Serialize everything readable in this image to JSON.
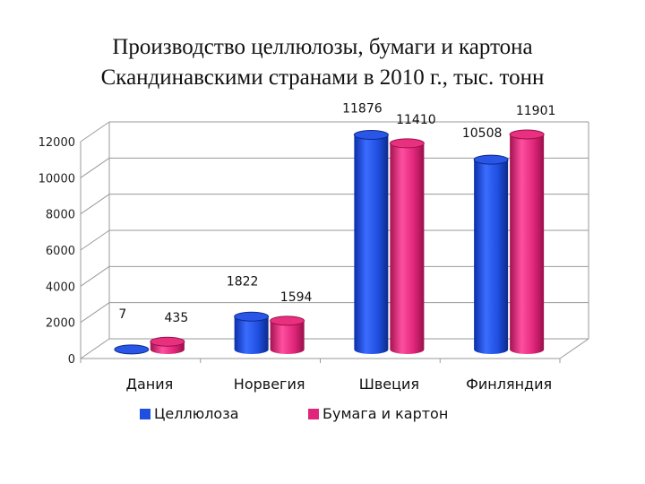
{
  "chart_data": {
    "type": "bar",
    "title_line1": "Производство целлюлозы, бумаги и картона",
    "title_line2": "Скандинавскими странами в 2010 г., тыс. тонн",
    "categories": [
      "Дания",
      "Норвегия",
      "Швеция",
      "Финляндия"
    ],
    "series": [
      {
        "name": "Целлюлоза",
        "values": [
          7,
          1822,
          11876,
          10508
        ],
        "color": "#1f4fe0"
      },
      {
        "name": "Бумага и картон",
        "values": [
          435,
          1594,
          11410,
          11901
        ],
        "color": "#e0267a"
      }
    ],
    "yticks": [
      0,
      2000,
      4000,
      6000,
      8000,
      10000,
      12000
    ],
    "ylim": [
      0,
      12000
    ],
    "grid": true,
    "legend_position": "bottom"
  }
}
